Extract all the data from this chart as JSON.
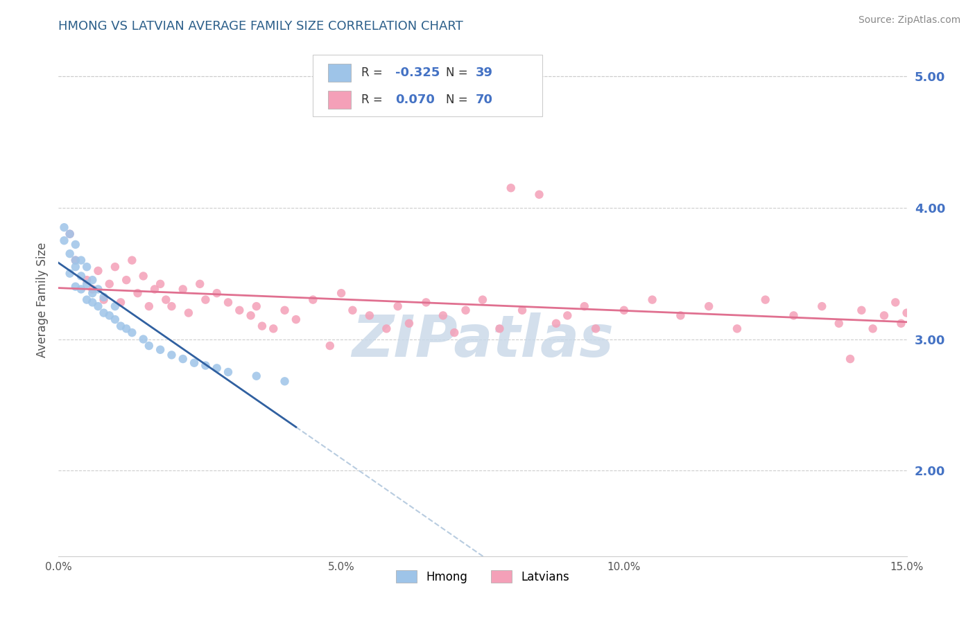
{
  "title": "HMONG VS LATVIAN AVERAGE FAMILY SIZE CORRELATION CHART",
  "source_text": "Source: ZipAtlas.com",
  "ylabel": "Average Family Size",
  "xlim": [
    0.0,
    0.15
  ],
  "ylim": [
    1.35,
    5.25
  ],
  "xticks": [
    0.0,
    0.05,
    0.1,
    0.15
  ],
  "xticklabels": [
    "0.0%",
    "5.0%",
    "10.0%",
    "15.0%"
  ],
  "yticks_right": [
    2.0,
    3.0,
    4.0,
    5.0
  ],
  "yticklabels_right": [
    "2.00",
    "3.00",
    "4.00",
    "5.00"
  ],
  "color_hmong": "#9ec4e8",
  "color_latvian": "#f4a0b8",
  "color_hmong_trend": "#3060a0",
  "color_latvian_trend": "#e07090",
  "color_hmong_dashed": "#b8cce0",
  "watermark": "ZIPatlas",
  "watermark_color": "#c8d8e8",
  "hmong_x": [
    0.001,
    0.001,
    0.002,
    0.002,
    0.002,
    0.003,
    0.003,
    0.003,
    0.003,
    0.004,
    0.004,
    0.004,
    0.005,
    0.005,
    0.005,
    0.006,
    0.006,
    0.006,
    0.007,
    0.007,
    0.008,
    0.008,
    0.009,
    0.01,
    0.01,
    0.011,
    0.012,
    0.013,
    0.015,
    0.016,
    0.018,
    0.02,
    0.022,
    0.024,
    0.026,
    0.028,
    0.03,
    0.035,
    0.04
  ],
  "hmong_y": [
    3.75,
    3.85,
    3.5,
    3.65,
    3.8,
    3.4,
    3.55,
    3.6,
    3.72,
    3.38,
    3.48,
    3.6,
    3.3,
    3.42,
    3.55,
    3.28,
    3.35,
    3.45,
    3.25,
    3.38,
    3.2,
    3.32,
    3.18,
    3.15,
    3.25,
    3.1,
    3.08,
    3.05,
    3.0,
    2.95,
    2.92,
    2.88,
    2.85,
    2.82,
    2.8,
    2.78,
    2.75,
    2.72,
    2.68
  ],
  "latvian_x": [
    0.002,
    0.003,
    0.005,
    0.006,
    0.007,
    0.008,
    0.009,
    0.01,
    0.011,
    0.012,
    0.013,
    0.014,
    0.015,
    0.016,
    0.017,
    0.018,
    0.019,
    0.02,
    0.022,
    0.023,
    0.025,
    0.026,
    0.028,
    0.03,
    0.032,
    0.034,
    0.035,
    0.036,
    0.038,
    0.04,
    0.042,
    0.045,
    0.048,
    0.05,
    0.052,
    0.055,
    0.058,
    0.06,
    0.062,
    0.065,
    0.068,
    0.07,
    0.072,
    0.075,
    0.078,
    0.08,
    0.082,
    0.085,
    0.088,
    0.09,
    0.093,
    0.095,
    0.1,
    0.105,
    0.11,
    0.115,
    0.12,
    0.125,
    0.13,
    0.135,
    0.138,
    0.14,
    0.142,
    0.144,
    0.146,
    0.148,
    0.149,
    0.15,
    0.151,
    0.152
  ],
  "latvian_y": [
    3.8,
    3.6,
    3.45,
    3.38,
    3.52,
    3.3,
    3.42,
    3.55,
    3.28,
    3.45,
    3.6,
    3.35,
    3.48,
    3.25,
    3.38,
    3.42,
    3.3,
    3.25,
    3.38,
    3.2,
    3.42,
    3.3,
    3.35,
    3.28,
    3.22,
    3.18,
    3.25,
    3.1,
    3.08,
    3.22,
    3.15,
    3.3,
    2.95,
    3.35,
    3.22,
    3.18,
    3.08,
    3.25,
    3.12,
    3.28,
    3.18,
    3.05,
    3.22,
    3.3,
    3.08,
    4.15,
    3.22,
    4.1,
    3.12,
    3.18,
    3.25,
    3.08,
    3.22,
    3.3,
    3.18,
    3.25,
    3.08,
    3.3,
    3.18,
    3.25,
    3.12,
    2.85,
    3.22,
    3.08,
    3.18,
    3.28,
    3.12,
    3.2,
    3.3,
    2.85
  ]
}
